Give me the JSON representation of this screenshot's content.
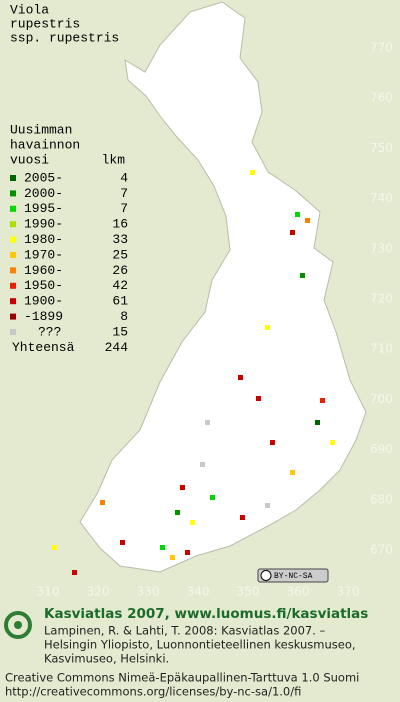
{
  "title": {
    "lines": [
      "Viola",
      "rupestris",
      "ssp. rupestris"
    ]
  },
  "legend": {
    "header": [
      "Uusimman",
      "havainnon"
    ],
    "col_year": "vuosi",
    "col_count": "lkm",
    "rows": [
      {
        "label": "2005-",
        "count": 4,
        "color": "#006400"
      },
      {
        "label": "2000-",
        "count": 7,
        "color": "#009000"
      },
      {
        "label": "1995-",
        "count": 7,
        "color": "#00d800"
      },
      {
        "label": "1990-",
        "count": 16,
        "color": "#a8e000"
      },
      {
        "label": "1980-",
        "count": 33,
        "color": "#ffff00"
      },
      {
        "label": "1970-",
        "count": 25,
        "color": "#ffc800"
      },
      {
        "label": "1960-",
        "count": 26,
        "color": "#ff8000"
      },
      {
        "label": "1950-",
        "count": 42,
        "color": "#e82000"
      },
      {
        "label": "1900-",
        "count": 61,
        "color": "#c80000"
      },
      {
        "label": "-1899",
        "count": 8,
        "color": "#a00000"
      },
      {
        "label": "???",
        "count": 15,
        "color": "#c8c8c8"
      }
    ],
    "total_label": "Yhteensä",
    "total": 244
  },
  "grid_labels": {
    "north": [
      770,
      760,
      750,
      740,
      730,
      720,
      710,
      700,
      690,
      680,
      670
    ],
    "east": [
      310,
      320,
      330,
      340,
      350,
      360,
      370
    ]
  },
  "license_badge": "BY-NC-SA",
  "footer": {
    "heading": "Kasviatlas 2007, www.luomus.fi/kasviatlas",
    "citation": [
      "Lampinen, R. & Lahti, T. 2008: Kasviatlas 2007. –",
      "Helsingin Yliopisto, Luonnontieteellinen keskusmuseo,",
      "Kasvimuseo, Helsinki."
    ],
    "license": [
      "Creative Commons Nimeä-Epäkaupallinen-Tarttuva 1.0 Suomi",
      "http://creativecommons.org/licenses/by-nc-sa/1.0/fi"
    ]
  }
}
